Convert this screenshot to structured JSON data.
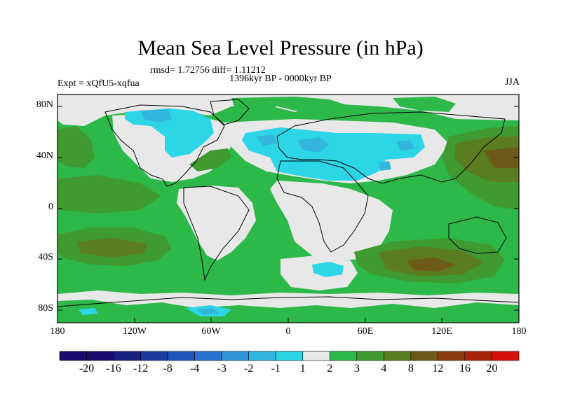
{
  "header": {
    "title": "Mean Sea Level Pressure (in hPa)",
    "stats": "rmsd= 1.72756  diff= 1.11212",
    "period": "1396kyr BP - 0000kyr BP",
    "experiment": "Expt = xQfU5-xqfua",
    "season": "JJA"
  },
  "map": {
    "lat_labels": [
      "80N",
      "40N",
      "0",
      "40S",
      "80S"
    ],
    "lon_labels": [
      "180",
      "120W",
      "60W",
      "0",
      "60E",
      "120E",
      "180"
    ],
    "lat_range": [
      -90,
      90
    ],
    "lon_range": [
      -180,
      180
    ]
  },
  "colorbar": {
    "labels": [
      "-20",
      "-16",
      "-12",
      "-8",
      "-4",
      "-3",
      "-2",
      "-1",
      "1",
      "2",
      "3",
      "4",
      "8",
      "12",
      "16",
      "20"
    ],
    "colors": [
      "#1a0a6e",
      "#18207f",
      "#1a3aa0",
      "#1d55b8",
      "#2a72cf",
      "#2f94d8",
      "#32b6de",
      "#2dd6e6",
      "#e8e8e8",
      "#2db84a",
      "#3f9a30",
      "#5a7d20",
      "#6e5a17",
      "#8a3d12",
      "#a8220d",
      "#d80f0a"
    ]
  },
  "colors": {
    "land_neutral": "#e8e8e8",
    "green": "#2db84a",
    "dark_green": "#3f9a30",
    "olive": "#5a7d20",
    "brown": "#6e5a17",
    "cyan": "#2dd6e6",
    "light_blue": "#32b6de",
    "blue": "#2a72cf"
  }
}
